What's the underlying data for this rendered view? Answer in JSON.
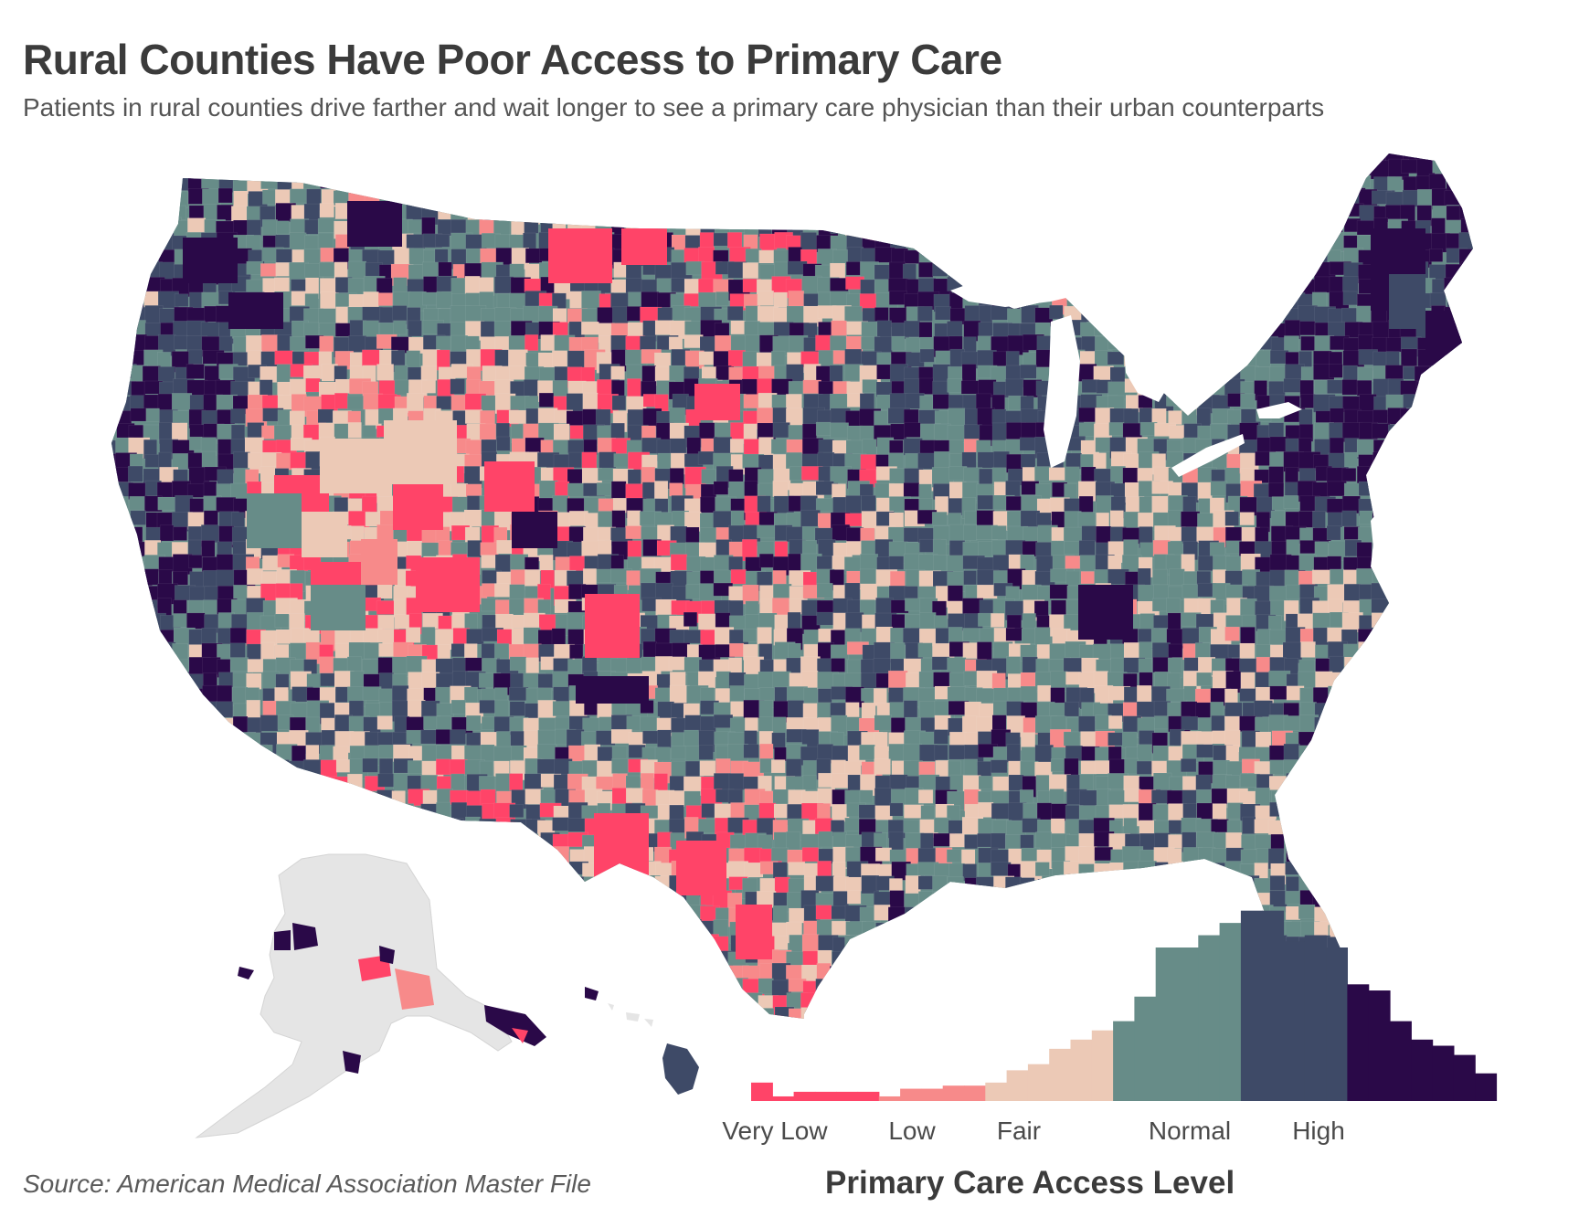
{
  "title": "Rural Counties Have Poor Access to Primary Care",
  "subtitle": "Patients in rural counties drive farther and wait longer to see a primary care physician than their urban counterparts",
  "source": "Source: American Medical Association Master File",
  "legend": {
    "title": "Primary Care Access Level",
    "levels": [
      {
        "label": "Very Low",
        "color": "#ff4468"
      },
      {
        "label": "Low",
        "color": "#f78a8a"
      },
      {
        "label": "Fair",
        "color": "#ecc9b6"
      },
      {
        "label": "Normal",
        "color": "#678c88"
      },
      {
        "label": "High",
        "color": "#3e4a67"
      }
    ],
    "top_color": "#2a0948",
    "histogram_heights": [
      12,
      3,
      6,
      6,
      6,
      6,
      3,
      8,
      8,
      10,
      10,
      12,
      20,
      24,
      34,
      40,
      46,
      52,
      68,
      100,
      100,
      108,
      116,
      124,
      124,
      104,
      108,
      100,
      76,
      72,
      52,
      40,
      36,
      30,
      18
    ]
  },
  "map": {
    "no_data_color": "#e5e5e5",
    "regions": [
      "conterminous-us",
      "alaska",
      "hawaii"
    ]
  }
}
